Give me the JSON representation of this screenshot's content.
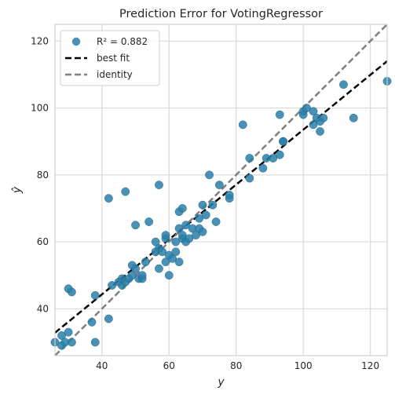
{
  "chart_data": {
    "type": "scatter",
    "title": "Prediction Error for VotingRegressor",
    "xlabel": "y",
    "ylabel": "ŷ",
    "xlim": [
      26,
      125
    ],
    "ylim": [
      26,
      125
    ],
    "xticks": [
      40,
      60,
      80,
      100,
      120
    ],
    "yticks": [
      40,
      60,
      80,
      100,
      120
    ],
    "grid": true,
    "legend_position": "top-left",
    "legend": [
      {
        "label": "R² = 0.882",
        "kind": "marker",
        "color": "#2a7fa8"
      },
      {
        "label": "best fit",
        "kind": "line",
        "color": "#000000",
        "style": "dashed"
      },
      {
        "label": "identity",
        "kind": "line",
        "color": "#7f7f7f",
        "style": "dashed"
      }
    ],
    "r2": 0.882,
    "best_fit": {
      "slope": 0.82,
      "intercept": 11.5
    },
    "identity": {
      "slope": 1,
      "intercept": 0
    },
    "colors": {
      "points": "#2a7fa8",
      "best_fit": "#000000",
      "identity": "#808080",
      "plot_bg": "#ffffff",
      "grid": "#d9d9d9",
      "frame": "#cfcfcf"
    },
    "points": [
      [
        26,
        30
      ],
      [
        28,
        29
      ],
      [
        28,
        32
      ],
      [
        29,
        30
      ],
      [
        30,
        46
      ],
      [
        30,
        33
      ],
      [
        31,
        30
      ],
      [
        31,
        45
      ],
      [
        37,
        36
      ],
      [
        38,
        44
      ],
      [
        38,
        30
      ],
      [
        42,
        73
      ],
      [
        42,
        37
      ],
      [
        43,
        47
      ],
      [
        45,
        48
      ],
      [
        46,
        47
      ],
      [
        46,
        49
      ],
      [
        47,
        75
      ],
      [
        47,
        48
      ],
      [
        48,
        49
      ],
      [
        49,
        50
      ],
      [
        49,
        53
      ],
      [
        50,
        65
      ],
      [
        50,
        52
      ],
      [
        51,
        49
      ],
      [
        52,
        49
      ],
      [
        52,
        50
      ],
      [
        53,
        54
      ],
      [
        54,
        66
      ],
      [
        56,
        57
      ],
      [
        56,
        60
      ],
      [
        57,
        77
      ],
      [
        57,
        52
      ],
      [
        57,
        58
      ],
      [
        58,
        57
      ],
      [
        59,
        61
      ],
      [
        59,
        62
      ],
      [
        59,
        54
      ],
      [
        60,
        50
      ],
      [
        60,
        56
      ],
      [
        61,
        55
      ],
      [
        62,
        57
      ],
      [
        62,
        60
      ],
      [
        63,
        69
      ],
      [
        63,
        64
      ],
      [
        64,
        70
      ],
      [
        63,
        54
      ],
      [
        64,
        61
      ],
      [
        64,
        62
      ],
      [
        65,
        60
      ],
      [
        65,
        65
      ],
      [
        66,
        61
      ],
      [
        67,
        64
      ],
      [
        68,
        62
      ],
      [
        69,
        64
      ],
      [
        69,
        67
      ],
      [
        70,
        63
      ],
      [
        70,
        71
      ],
      [
        71,
        68
      ],
      [
        72,
        80
      ],
      [
        73,
        71
      ],
      [
        74,
        66
      ],
      [
        75,
        77
      ],
      [
        78,
        73
      ],
      [
        78,
        74
      ],
      [
        82,
        95
      ],
      [
        84,
        85
      ],
      [
        84,
        79
      ],
      [
        88,
        82
      ],
      [
        89,
        85
      ],
      [
        91,
        85
      ],
      [
        93,
        86
      ],
      [
        93,
        98
      ],
      [
        94,
        90
      ],
      [
        94,
        90
      ],
      [
        100,
        99
      ],
      [
        100,
        98
      ],
      [
        101,
        100
      ],
      [
        103,
        95
      ],
      [
        103,
        99
      ],
      [
        104,
        97
      ],
      [
        105,
        93
      ],
      [
        105,
        96
      ],
      [
        106,
        97
      ],
      [
        112,
        107
      ],
      [
        115,
        97
      ],
      [
        125,
        108
      ]
    ]
  }
}
